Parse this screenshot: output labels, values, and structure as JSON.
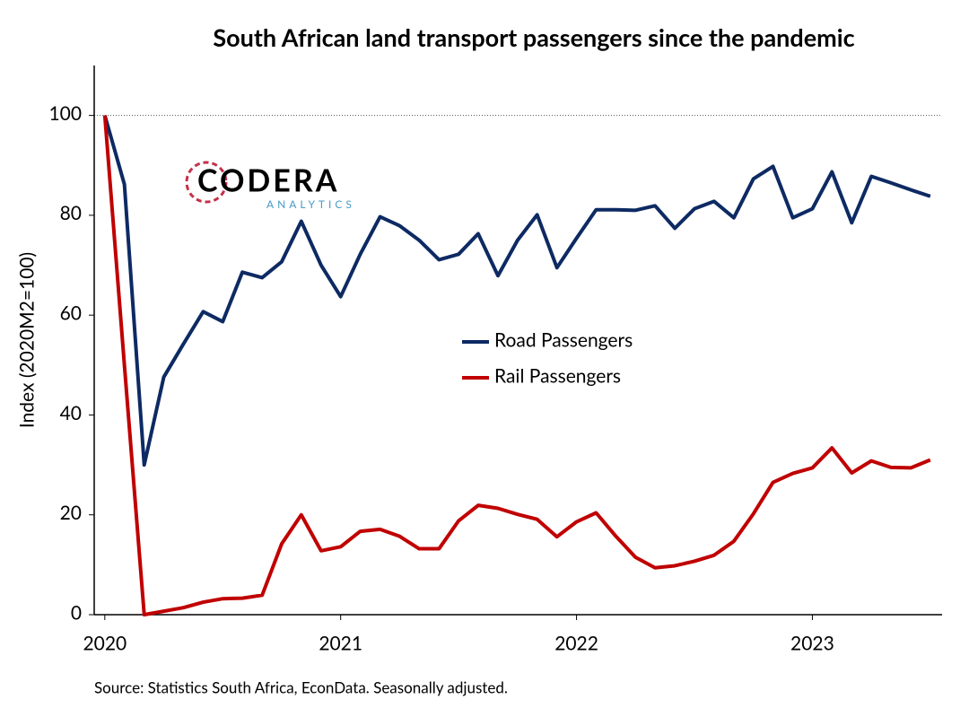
{
  "chart_data": {
    "type": "line",
    "title": "South African land transport passengers since the pandemic",
    "y_label": "Index (2020M2=100)",
    "source": "Source: Statistics South Africa, EconData. Seasonally adjusted.",
    "logo": {
      "name": "CODERA",
      "sub": "ANALYTICS"
    },
    "x": [
      2020,
      2020.083,
      2020.167,
      2020.25,
      2020.333,
      2020.417,
      2020.5,
      2020.583,
      2020.667,
      2020.75,
      2020.833,
      2020.917,
      2021,
      2021.083,
      2021.167,
      2021.25,
      2021.333,
      2021.417,
      2021.5,
      2021.583,
      2021.667,
      2021.75,
      2021.833,
      2021.917,
      2022,
      2022.083,
      2022.167,
      2022.25,
      2022.333,
      2022.417,
      2022.5,
      2022.583,
      2022.667,
      2022.75,
      2022.833,
      2022.917,
      2023,
      2023.083,
      2023.167,
      2023.25,
      2023.333,
      2023.417,
      2023.5
    ],
    "series": [
      {
        "name": "Road Passengers",
        "color": "#0d2a63",
        "values": [
          100,
          86.2,
          30,
          47.6,
          54.2,
          60.7,
          58.7,
          68.6,
          67.5,
          70.7,
          78.8,
          70,
          63.7,
          72.2,
          79.7,
          77.9,
          75,
          71.1,
          72.2,
          76.3,
          67.9,
          75,
          80.1,
          69.5,
          75.4,
          81.1,
          81.1,
          81,
          81.9,
          77.4,
          81.3,
          82.8,
          79.5,
          87.3,
          89.8,
          79.5,
          81.3,
          88.7,
          78.5,
          87.8,
          86.5,
          85.1,
          83.8
        ]
      },
      {
        "name": "Rail Passengers",
        "color": "#c00000",
        "values": [
          100,
          50,
          0,
          0.7,
          1.4,
          2.5,
          3.2,
          3.3,
          3.9,
          14.2,
          20,
          12.8,
          13.6,
          16.7,
          17.1,
          15.7,
          13.2,
          13.2,
          18.8,
          21.9,
          21.3,
          20.1,
          19.1,
          15.6,
          18.6,
          20.4,
          15.7,
          11.5,
          9.4,
          9.8,
          10.7,
          11.9,
          14.7,
          20.2,
          26.5,
          28.3,
          29.4,
          33.4,
          28.4,
          30.8,
          29.5,
          29.4,
          31
        ]
      }
    ],
    "xlim": [
      2019.955,
      2023.55
    ],
    "xticks": [
      2020,
      2021,
      2022,
      2023
    ],
    "ylim": [
      0,
      110
    ],
    "yticks": [
      0,
      20,
      40,
      60,
      80,
      100
    ],
    "reference_line": 100,
    "legend": "center"
  }
}
